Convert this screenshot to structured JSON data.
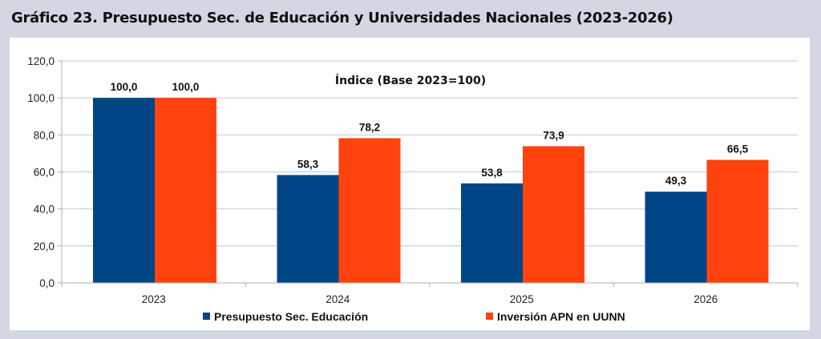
{
  "title": "Gráfico 23. Presupuesto Sec. de Educación y Universidades Nacionales (2023-2026)",
  "chart_data": {
    "type": "bar",
    "title": "Gráfico 23. Presupuesto Sec. de Educación y Universidades Nacionales (2023-2026)",
    "subtitle": "Índice (Base 2023=100)",
    "categories": [
      "2023",
      "2024",
      "2025",
      "2026"
    ],
    "series": [
      {
        "name": "Presupuesto Sec. Educación",
        "color": "#004586",
        "values": [
          100.0,
          58.3,
          53.8,
          49.3
        ],
        "labels": [
          "100,0",
          "58,3",
          "53,8",
          "49,3"
        ]
      },
      {
        "name": "Inversión APN en UUNN",
        "color": "#ff420e",
        "values": [
          100.0,
          78.2,
          73.9,
          66.5
        ],
        "labels": [
          "100,0",
          "78,2",
          "73,9",
          "66,5"
        ]
      }
    ],
    "ylim": [
      0,
      120
    ],
    "yticks": [
      0,
      20,
      40,
      60,
      80,
      100,
      120
    ],
    "ytick_labels": [
      "0,0",
      "20,0",
      "40,0",
      "60,0",
      "80,0",
      "100,0",
      "120,0"
    ],
    "xlabel": "",
    "ylabel": "",
    "grid": true,
    "legend": "bottom"
  }
}
